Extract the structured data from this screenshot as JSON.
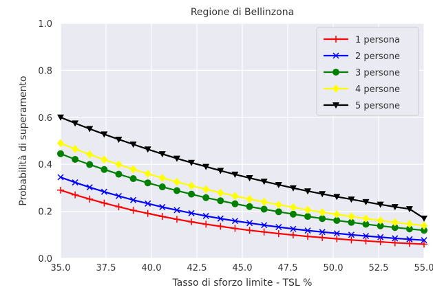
{
  "chart_data": {
    "type": "line",
    "title": "Regione di Bellinzona",
    "xlabel": "Tasso di sforzo limite - TSL %",
    "ylabel": "Probabilità di superamento",
    "xlim": [
      35.0,
      55.0
    ],
    "ylim": [
      0.0,
      1.0
    ],
    "xticks": [
      "35.0",
      "37.5",
      "40.0",
      "42.5",
      "45.0",
      "47.5",
      "50.0",
      "52.5",
      "55.0"
    ],
    "yticks": [
      "0.0",
      "0.2",
      "0.4",
      "0.6",
      "0.8",
      "1.0"
    ],
    "grid": true,
    "legend_position": "top-right",
    "x": [
      35.0,
      35.8,
      36.6,
      37.4,
      38.2,
      39.0,
      39.8,
      40.6,
      41.4,
      42.2,
      43.0,
      43.8,
      44.6,
      45.4,
      46.2,
      47.0,
      47.8,
      48.6,
      49.4,
      50.2,
      51.0,
      51.8,
      52.6,
      53.4,
      54.2,
      55.0
    ],
    "series": [
      {
        "name": "1 persona",
        "color": "#ff0000",
        "marker": "plus",
        "values": [
          0.29,
          0.27,
          0.252,
          0.235,
          0.219,
          0.204,
          0.191,
          0.178,
          0.166,
          0.155,
          0.145,
          0.136,
          0.127,
          0.119,
          0.112,
          0.105,
          0.099,
          0.093,
          0.088,
          0.083,
          0.078,
          0.074,
          0.07,
          0.066,
          0.063,
          0.06
        ]
      },
      {
        "name": "2 persone",
        "color": "#0000ff",
        "marker": "x",
        "values": [
          0.345,
          0.323,
          0.302,
          0.283,
          0.265,
          0.248,
          0.233,
          0.218,
          0.205,
          0.192,
          0.18,
          0.169,
          0.159,
          0.15,
          0.141,
          0.133,
          0.125,
          0.118,
          0.112,
          0.106,
          0.1,
          0.095,
          0.09,
          0.085,
          0.081,
          0.077
        ]
      },
      {
        "name": "3 persone",
        "color": "#008000",
        "marker": "circle",
        "values": [
          0.445,
          0.421,
          0.399,
          0.378,
          0.358,
          0.339,
          0.321,
          0.304,
          0.288,
          0.273,
          0.258,
          0.245,
          0.232,
          0.22,
          0.209,
          0.198,
          0.188,
          0.178,
          0.169,
          0.161,
          0.153,
          0.145,
          0.138,
          0.131,
          0.125,
          0.119
        ]
      },
      {
        "name": "4 persone",
        "color": "#ffff00",
        "marker": "diamond",
        "values": [
          0.49,
          0.465,
          0.442,
          0.42,
          0.399,
          0.379,
          0.36,
          0.342,
          0.325,
          0.309,
          0.294,
          0.279,
          0.265,
          0.252,
          0.24,
          0.228,
          0.217,
          0.206,
          0.196,
          0.187,
          0.178,
          0.169,
          0.161,
          0.153,
          0.146,
          0.139
        ]
      },
      {
        "name": "5 persone",
        "color": "#000000",
        "marker": "triangle-down",
        "values": [
          0.6,
          0.575,
          0.551,
          0.528,
          0.506,
          0.485,
          0.464,
          0.444,
          0.425,
          0.407,
          0.39,
          0.373,
          0.357,
          0.342,
          0.327,
          0.313,
          0.299,
          0.286,
          0.274,
          0.262,
          0.251,
          0.24,
          0.229,
          0.219,
          0.21,
          0.17
        ]
      }
    ]
  }
}
